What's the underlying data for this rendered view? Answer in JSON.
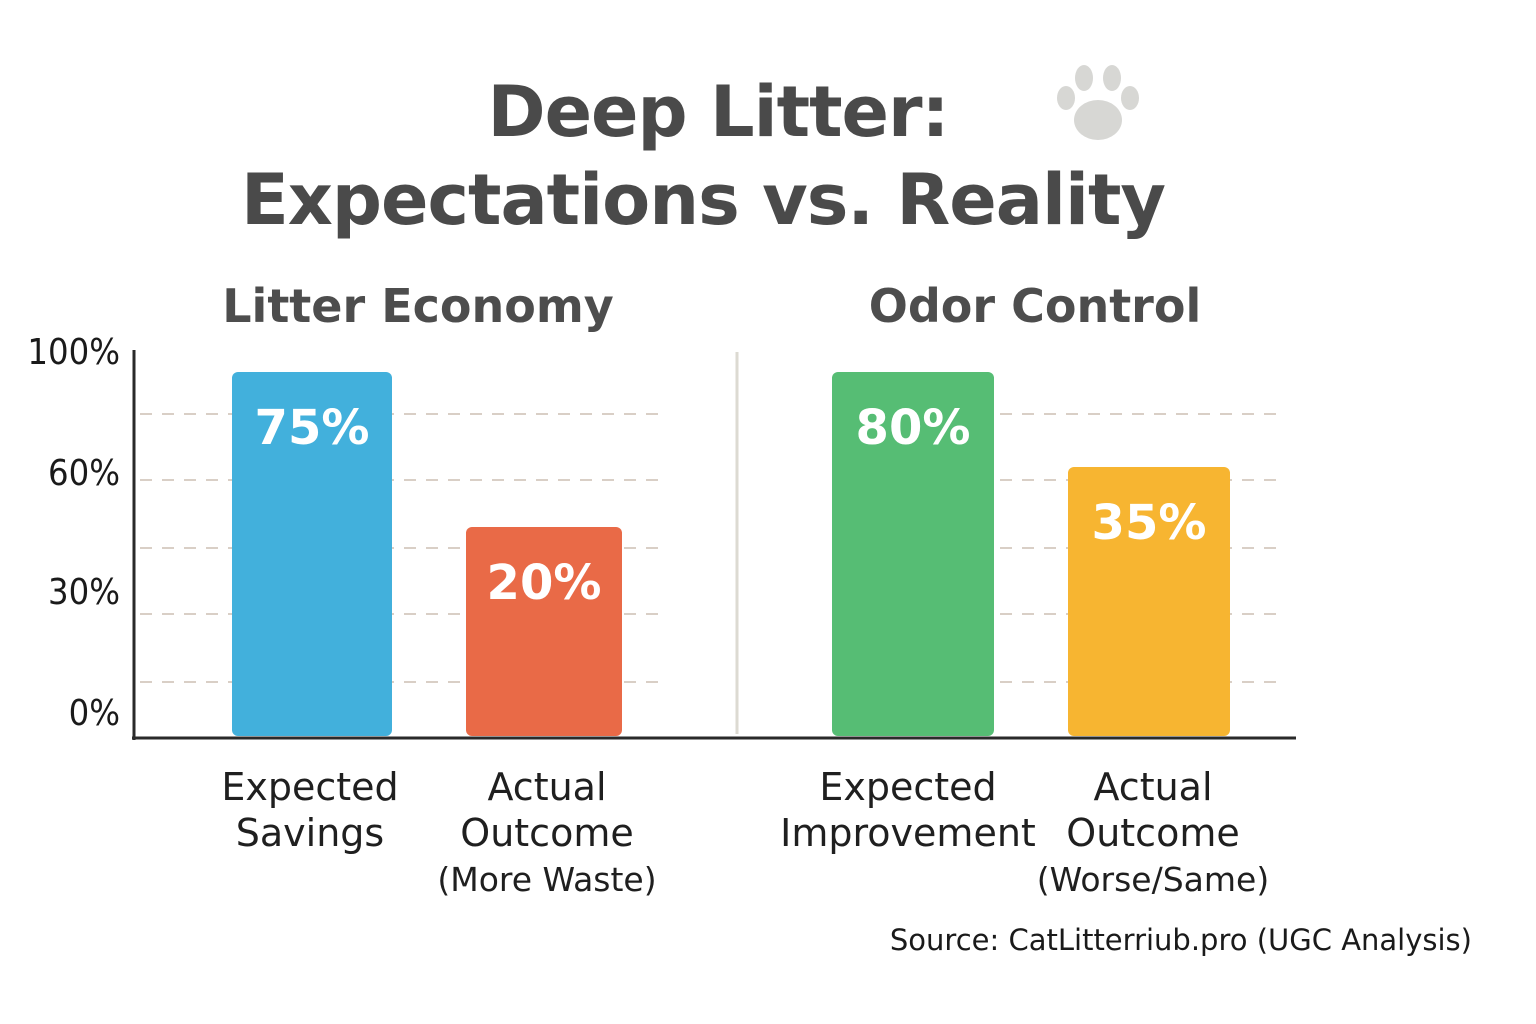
{
  "chart_data": {
    "type": "bar",
    "title_lines": [
      "Deep Litter:",
      "Expectations vs. Reality"
    ],
    "y_ticks": [
      "100%",
      "60%",
      "30%",
      "0%"
    ],
    "ylim": [
      0,
      100
    ],
    "grid": "dashed horizontal",
    "panels": [
      {
        "title": "Litter Economy",
        "bars": [
          {
            "label_lines": [
              "Expected",
              "Savings"
            ],
            "sub": "",
            "value": 75,
            "display": "75%",
            "color": "#42b0dc"
          },
          {
            "label_lines": [
              "Actual",
              "Outcome"
            ],
            "sub": "(More Waste)",
            "value": 20,
            "display": "20%",
            "color": "#e96a47"
          }
        ]
      },
      {
        "title": "Odor Control",
        "bars": [
          {
            "label_lines": [
              "Expected",
              "Improvement"
            ],
            "sub": "",
            "value": 80,
            "display": "80%",
            "color": "#56bd74"
          },
          {
            "label_lines": [
              "Actual",
              "Outcome"
            ],
            "sub": "(Worse/Same)",
            "value": 35,
            "display": "35%",
            "color": "#f7b531"
          }
        ]
      }
    ],
    "source": "Source: CatLitterriub.pro (UGC Analysis)"
  },
  "icons": {
    "decoration": "paw-print-icon"
  }
}
